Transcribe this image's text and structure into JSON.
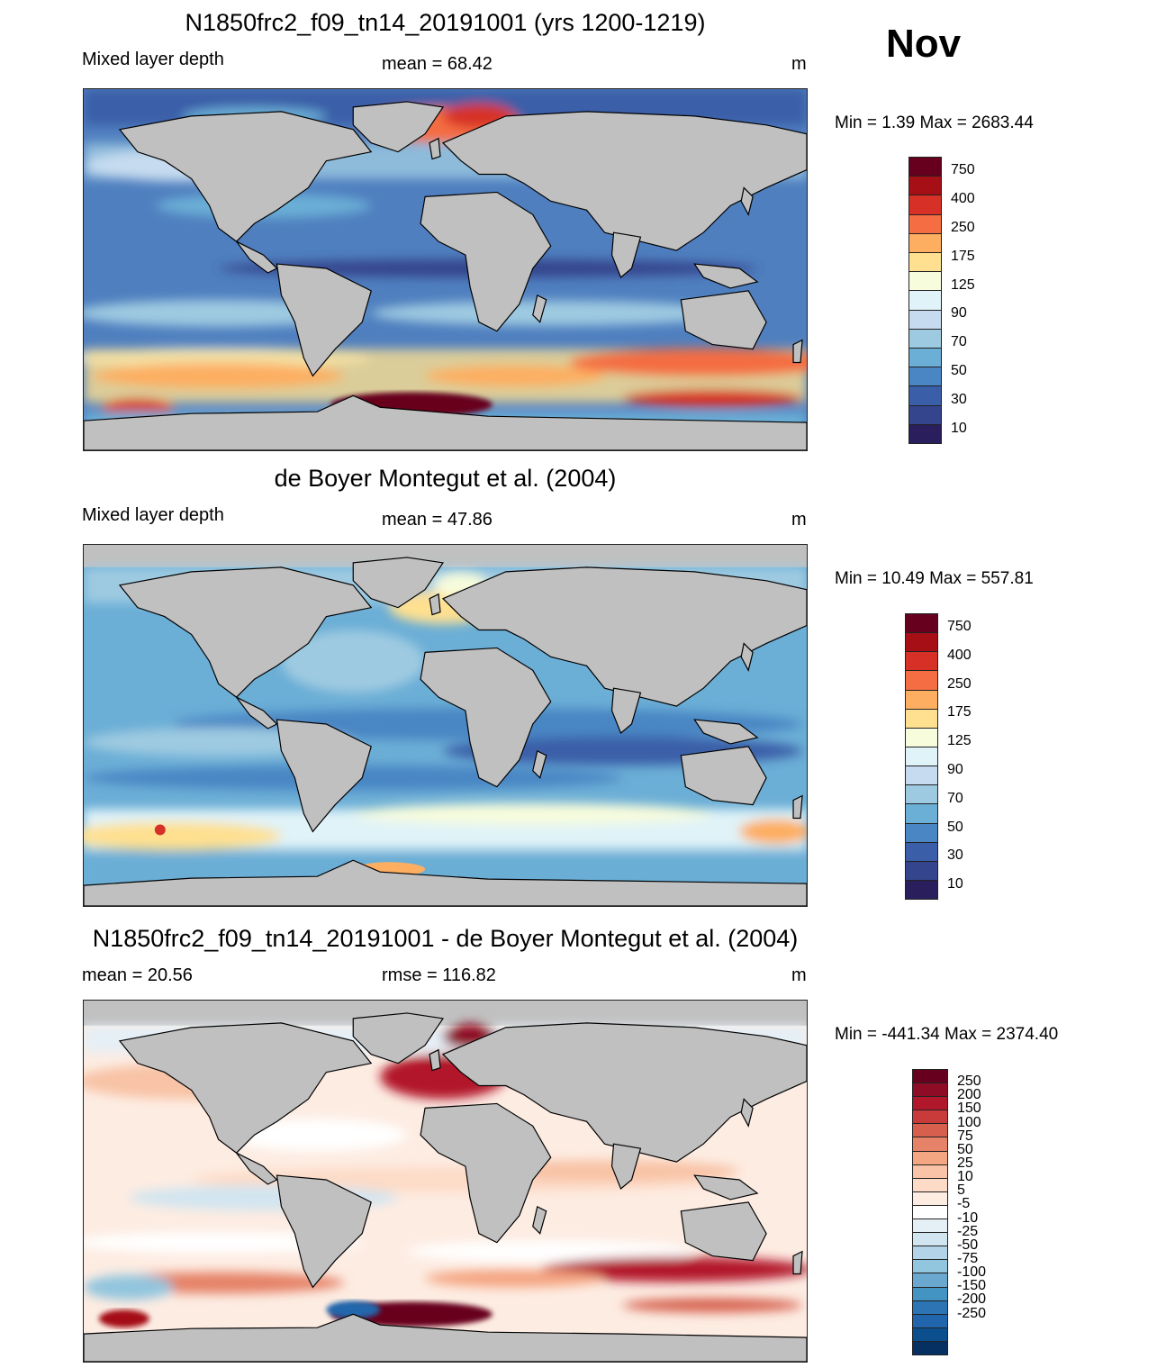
{
  "month": "Nov",
  "panels": [
    {
      "title": "N1850frc2_f09_tn14_20191001 (yrs 1200-1219)",
      "left_label": "Mixed layer depth",
      "center_label": "mean =  68.42",
      "units": "m",
      "minmax": "Min =    1.39 Max = 2683.44",
      "colorbar_labels": [
        "750",
        "400",
        "250",
        "175",
        "125",
        "90",
        "70",
        "50",
        "30",
        "10"
      ],
      "colorbar_colors": [
        "#67001f",
        "#a50f15",
        "#d73027",
        "#f46d43",
        "#fdae61",
        "#fee090",
        "#f7fcdc",
        "#e0f3f8",
        "#c6dbef",
        "#9ecae1",
        "#6baed6",
        "#4a86c4",
        "#3a5fa8",
        "#34448d",
        "#2a1e5c"
      ]
    },
    {
      "title": "de Boyer Montegut et al. (2004)",
      "left_label": "Mixed layer depth",
      "center_label": "mean =  47.86",
      "units": "m",
      "minmax": "Min =  10.49 Max = 557.81",
      "colorbar_labels": [
        "750",
        "400",
        "250",
        "175",
        "125",
        "90",
        "70",
        "50",
        "30",
        "10"
      ],
      "colorbar_colors": [
        "#67001f",
        "#a50f15",
        "#d73027",
        "#f46d43",
        "#fdae61",
        "#fee090",
        "#f7fcdc",
        "#e0f3f8",
        "#c6dbef",
        "#9ecae1",
        "#6baed6",
        "#4a86c4",
        "#3a5fa8",
        "#34448d",
        "#2a1e5c"
      ]
    },
    {
      "title": "N1850frc2_f09_tn14_20191001 - de Boyer Montegut et al. (2004)",
      "left_label": "mean =  20.56",
      "center_label": "rmse = 116.82",
      "units": "m",
      "minmax": "Min = -441.34 Max = 2374.40",
      "colorbar_labels": [
        "250",
        "200",
        "150",
        "100",
        "75",
        "50",
        "25",
        "10",
        "5",
        "-5",
        "-10",
        "-25",
        "-50",
        "-75",
        "-100",
        "-150",
        "-200",
        "-250"
      ],
      "colorbar_colors": [
        "#67001f",
        "#8e0c25",
        "#b2182b",
        "#c93a3a",
        "#d6604d",
        "#e58267",
        "#f4a582",
        "#f8c3a6",
        "#fddbc7",
        "#fdece2",
        "#ffffff",
        "#e5eff6",
        "#d1e5f0",
        "#b3d4e8",
        "#92c5de",
        "#6aa8cf",
        "#4393c3",
        "#2c74b4",
        "#2166ac",
        "#0b4f8f",
        "#053061"
      ]
    }
  ]
}
